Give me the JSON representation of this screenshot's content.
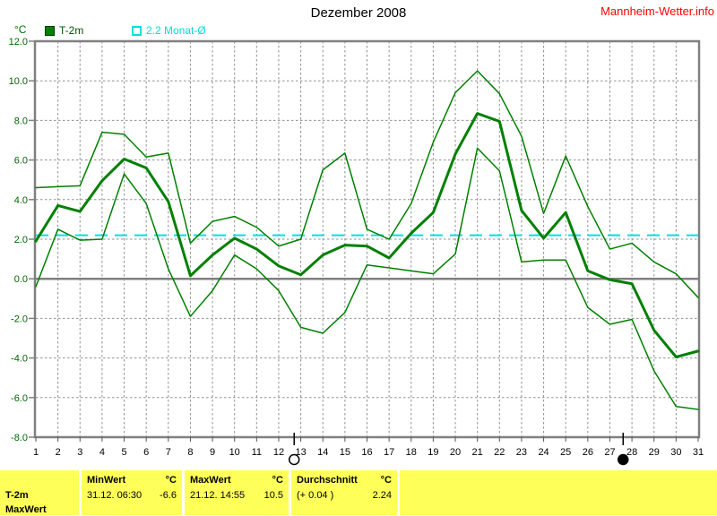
{
  "header": {
    "title": "Dezember 2008",
    "watermark": "Mannheim-Wetter.info"
  },
  "legend": {
    "unit_label": "°C",
    "items": [
      {
        "label": "T-2m",
        "color": "#008000",
        "style": "filled"
      },
      {
        "label": "2.2 Monat-Ø",
        "color": "#00e0e0",
        "style": "outline"
      }
    ]
  },
  "chart_data": {
    "type": "line",
    "title": "Dezember 2008",
    "y_unit": "°C",
    "ylim": [
      -8,
      12
    ],
    "y_ticks": [
      12,
      10,
      8,
      6,
      4,
      2,
      0,
      -2,
      -4,
      -6,
      -8
    ],
    "days": [
      1,
      2,
      3,
      4,
      5,
      6,
      7,
      8,
      9,
      10,
      11,
      12,
      13,
      14,
      15,
      16,
      17,
      18,
      19,
      20,
      21,
      22,
      23,
      24,
      25,
      26,
      27,
      28,
      29,
      30,
      31
    ],
    "grid": true,
    "zero_line": true,
    "legend_position": "top-left",
    "series": [
      {
        "name": "T-2m Maximum",
        "role": "max",
        "color": "#008000",
        "width": 1.5,
        "values": [
          4.6,
          4.65,
          4.7,
          7.4,
          7.3,
          6.15,
          6.35,
          1.8,
          2.9,
          3.15,
          2.6,
          1.65,
          2.0,
          5.5,
          6.35,
          2.5,
          2.0,
          3.8,
          6.9,
          9.4,
          10.5,
          9.35,
          7.2,
          3.3,
          6.2,
          3.65,
          1.5,
          1.8,
          0.85,
          0.25,
          -0.95
        ]
      },
      {
        "name": "T-2m",
        "role": "avg",
        "color": "#008000",
        "width": 3,
        "values": [
          1.9,
          3.7,
          3.4,
          4.95,
          6.05,
          5.6,
          3.9,
          0.15,
          1.2,
          2.05,
          1.5,
          0.65,
          0.2,
          1.2,
          1.7,
          1.65,
          1.05,
          2.3,
          3.35,
          6.3,
          8.35,
          7.95,
          3.45,
          2.05,
          3.35,
          0.4,
          -0.05,
          -0.25,
          -2.6,
          -3.95,
          -3.65
        ]
      },
      {
        "name": "T-2m Minimum",
        "role": "min",
        "color": "#008000",
        "width": 1.5,
        "values": [
          -0.4,
          2.5,
          1.95,
          2.0,
          5.3,
          3.8,
          0.5,
          -1.9,
          -0.6,
          1.2,
          0.5,
          -0.6,
          -2.45,
          -2.75,
          -1.7,
          0.7,
          0.55,
          0.4,
          0.25,
          1.25,
          6.6,
          5.45,
          0.85,
          0.95,
          0.95,
          -1.45,
          -2.3,
          -2.05,
          -4.65,
          -6.45,
          -6.6
        ]
      }
    ],
    "reference_line": {
      "label": "2.2 Monat-Ø",
      "value": 2.2,
      "color": "#00e0e0",
      "style": "dashed"
    },
    "moon_markers": [
      {
        "day": 12.7,
        "phase": "full"
      },
      {
        "day": 27.6,
        "phase": "new"
      }
    ]
  },
  "table": {
    "row_label": "T-2m",
    "partial_row_label": "MaxWert",
    "cols": [
      {
        "header": "MinWert",
        "unit": "°C",
        "value": "31.12.  06:30",
        "amount": "-6.6"
      },
      {
        "header": "MaxWert",
        "unit": "°C",
        "value": "21.12.  14:55",
        "amount": "10.5"
      },
      {
        "header": "Durchschnitt",
        "unit": "°C",
        "value": "(+ 0.04 )",
        "amount": "2.24"
      }
    ]
  },
  "colors": {
    "line_green": "#008000",
    "axis_label_green": "#006600",
    "watermark_red": "#ff0000",
    "table_yellow": "#ffff5a",
    "reference_cyan": "#00e0e0",
    "grid_gray": "#909090",
    "border_gray": "#808080"
  }
}
